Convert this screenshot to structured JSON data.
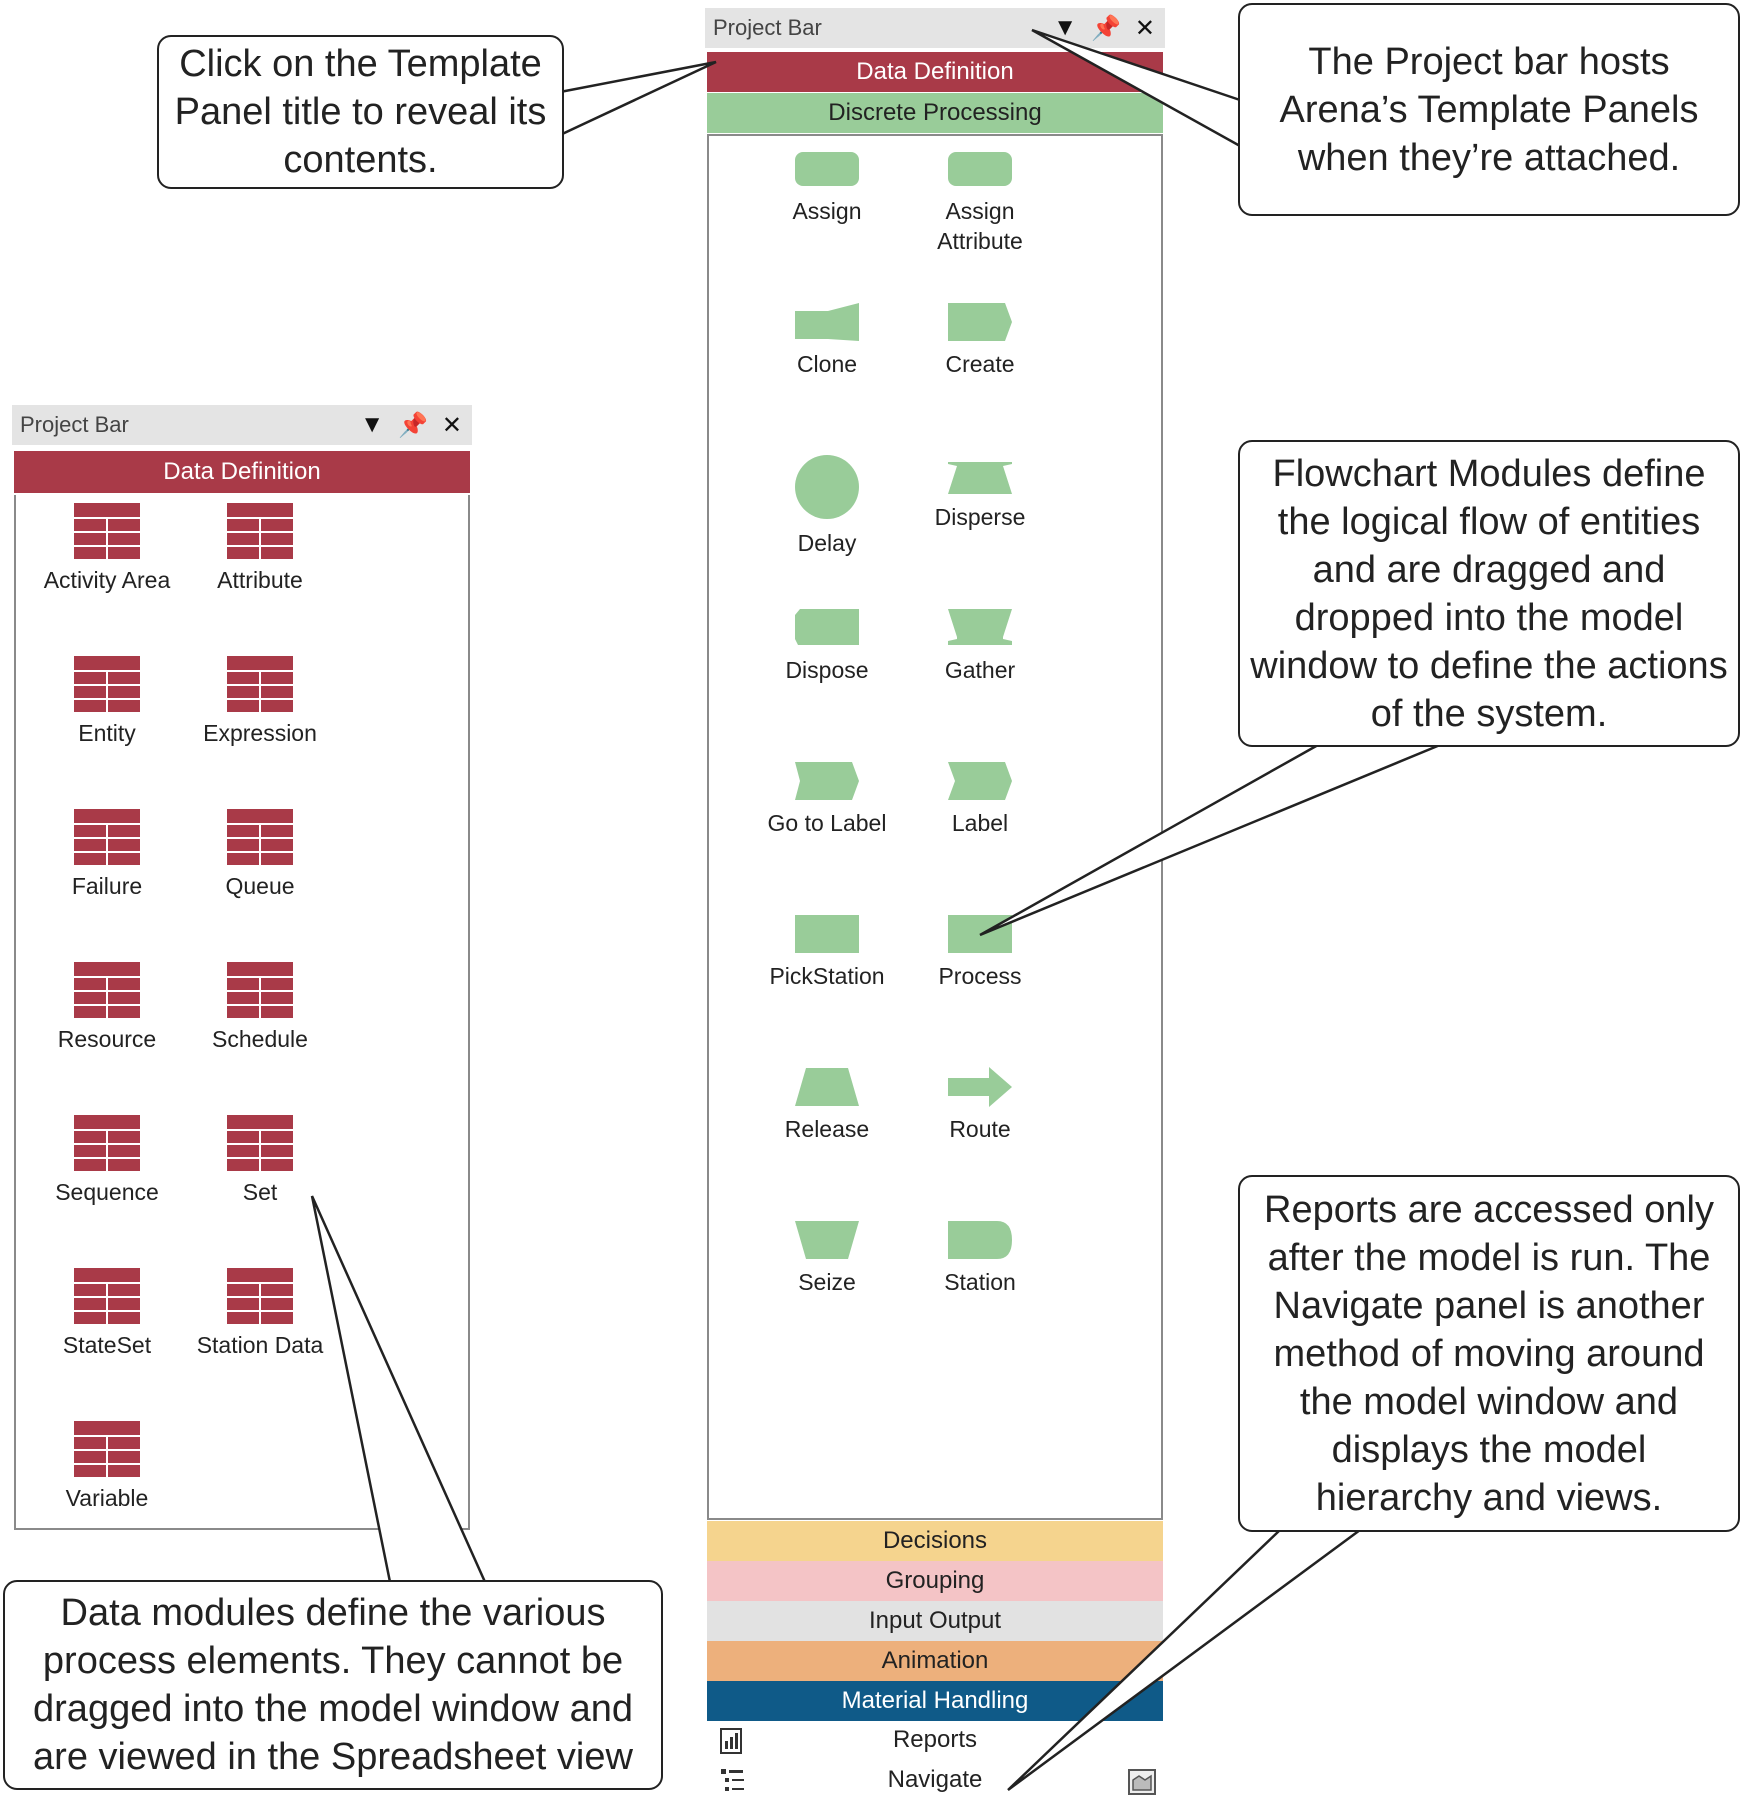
{
  "left_panel": {
    "title": "Project Bar",
    "active_panel": "Data Definition",
    "modules": [
      "Activity Area",
      "Attribute",
      "Entity",
      "Expression",
      "Failure",
      "Queue",
      "Resource",
      "Schedule",
      "Sequence",
      "Set",
      "StateSet",
      "Station Data",
      "Variable"
    ]
  },
  "right_panel": {
    "title": "Project Bar",
    "bands_top": [
      {
        "label": "Data Definition",
        "color": "#a93a48",
        "text_color": "#ffffff"
      },
      {
        "label": "Discrete Processing",
        "color": "#99cc99",
        "text_color": "#222222"
      }
    ],
    "modules": [
      {
        "label": "Assign",
        "shape": "rounded"
      },
      {
        "label": "Assign\nAttribute",
        "shape": "rounded"
      },
      {
        "label": "Clone",
        "shape": "clone"
      },
      {
        "label": "Create",
        "shape": "create"
      },
      {
        "label": "Delay",
        "shape": "circle"
      },
      {
        "label": "Disperse",
        "shape": "disperse"
      },
      {
        "label": "Dispose",
        "shape": "dispose"
      },
      {
        "label": "Gather",
        "shape": "gather"
      },
      {
        "label": "Go to Label",
        "shape": "goto"
      },
      {
        "label": "Label",
        "shape": "label"
      },
      {
        "label": "PickStation",
        "shape": "rect"
      },
      {
        "label": "Process",
        "shape": "rect"
      },
      {
        "label": "Release",
        "shape": "release"
      },
      {
        "label": "Route",
        "shape": "arrow"
      },
      {
        "label": "Seize",
        "shape": "seize"
      },
      {
        "label": "Station",
        "shape": "station"
      }
    ],
    "bands_bottom": [
      {
        "label": "Decisions",
        "color": "#f5d48e",
        "text_color": "#222222"
      },
      {
        "label": "Grouping",
        "color": "#f4c4c6",
        "text_color": "#222222"
      },
      {
        "label": "Input Output",
        "color": "#e2e2e2",
        "text_color": "#222222"
      },
      {
        "label": "Animation",
        "color": "#edb07c",
        "text_color": "#222222"
      },
      {
        "label": "Material Handling",
        "color": "#0f5a88",
        "text_color": "#ffffff"
      }
    ],
    "reports_label": "Reports",
    "navigate_label": "Navigate"
  },
  "callouts": {
    "template_title": "Click on the Template Panel title to reveal its contents.",
    "project_bar": "The Project bar hosts Arena’s Template Panels when they’re attached.",
    "flowchart": "Flowchart Modules define the logical flow of entities and are dragged and dropped into the model window to define the actions of the system.",
    "reports": "Reports are accessed only after the model is run. The Navigate panel is another method of moving around the model window and displays the model hierarchy and views.",
    "data_modules": "Data modules define the various process elements. They cannot be dragged into the model window and are viewed in the Spreadsheet view"
  },
  "icons": {
    "dropdown": "dropdown-icon",
    "pin": "pin-icon",
    "close": "close-icon",
    "data_module": "data-module-table-icon",
    "reports": "reports-icon",
    "navigate": "navigate-tree-icon",
    "corner": "view-icon"
  },
  "colors": {
    "data_red": "#a93a48",
    "flow_green": "#99cc99"
  }
}
